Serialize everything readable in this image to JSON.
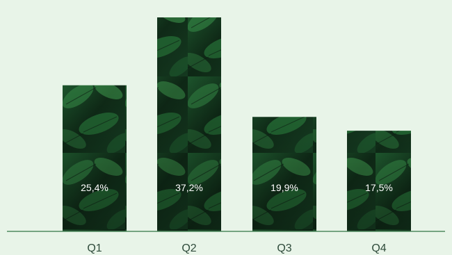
{
  "chart_data": {
    "type": "bar",
    "categories": [
      "Q1",
      "Q2",
      "Q3",
      "Q4"
    ],
    "values": [
      25.4,
      37.2,
      19.9,
      17.5
    ],
    "value_labels": [
      "25,4%",
      "37,2%",
      "19,9%",
      "17,5%"
    ],
    "title": "",
    "xlabel": "",
    "ylabel": "",
    "ylim": [
      0,
      39.5
    ],
    "grid": false,
    "legend": "none",
    "bar_fill": "leaf-photo-texture",
    "colors": {
      "background": "#e8f4e8",
      "axis": "#4f8a5f",
      "tick_text": "#2e4a3a",
      "bar_label_text": "#ffffff",
      "leaf_dark": "#0f2a17",
      "leaf_mid": "#1f5a2f",
      "leaf_light": "#3f9a4f"
    }
  }
}
